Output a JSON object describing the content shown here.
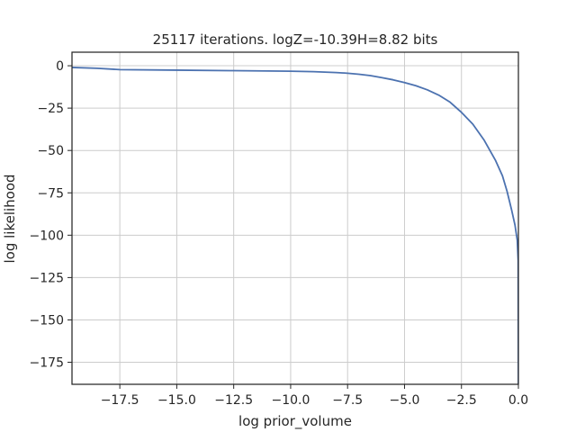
{
  "chart_data": {
    "type": "line",
    "title": "25117 iterations. logZ=-10.39H=8.82 bits",
    "xlabel": "log prior_volume",
    "ylabel": "log likelihood",
    "xlim": [
      -19.6,
      0.0
    ],
    "ylim": [
      -188,
      8
    ],
    "xticks": [
      -17.5,
      -15.0,
      -12.5,
      -10.0,
      -7.5,
      -5.0,
      -2.5,
      0.0
    ],
    "xtick_labels": [
      "−17.5",
      "−15.0",
      "−12.5",
      "−10.0",
      "−7.5",
      "−5.0",
      "−2.5",
      "0.0"
    ],
    "yticks": [
      0,
      -25,
      -50,
      -75,
      -100,
      -125,
      -150,
      -175
    ],
    "ytick_labels": [
      "0",
      "−25",
      "−50",
      "−75",
      "−100",
      "−125",
      "−150",
      "−175"
    ],
    "grid": true,
    "series": [
      {
        "color": "#4c72b0",
        "x": [
          -19.6,
          -18.5,
          -17.5,
          -15.0,
          -12.5,
          -10.0,
          -9.0,
          -8.0,
          -7.5,
          -7.0,
          -6.5,
          -6.0,
          -5.5,
          -5.0,
          -4.5,
          -4.0,
          -3.5,
          -3.0,
          -2.5,
          -2.0,
          -1.5,
          -1.0,
          -0.7,
          -0.5,
          -0.3,
          -0.15,
          -0.05,
          -0.01,
          0.0
        ],
        "y": [
          -1.0,
          -1.5,
          -2.3,
          -2.6,
          -2.9,
          -3.2,
          -3.5,
          -4.0,
          -4.4,
          -5.0,
          -5.8,
          -7.0,
          -8.3,
          -9.9,
          -11.8,
          -14.2,
          -17.3,
          -21.5,
          -27.5,
          -34.5,
          -44.0,
          -56.0,
          -65.0,
          -74.0,
          -85.0,
          -94.0,
          -103.0,
          -115.0,
          -190.0
        ]
      }
    ]
  }
}
